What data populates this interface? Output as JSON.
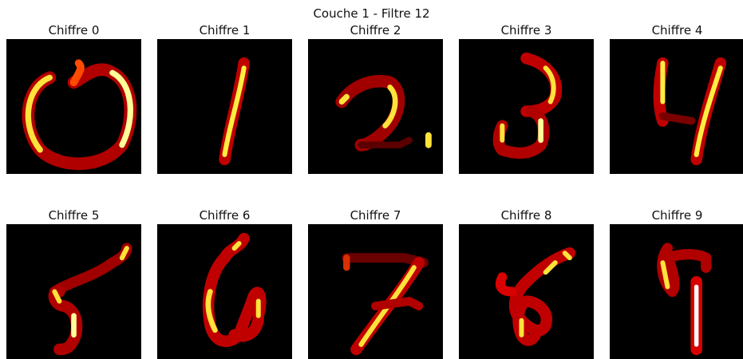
{
  "suptitle": "Couche 1 - Filtre 12",
  "colormap": "hot",
  "panels": [
    {
      "title": "Chiffre 0",
      "digit": "0"
    },
    {
      "title": "Chiffre 1",
      "digit": "1"
    },
    {
      "title": "Chiffre 2",
      "digit": "2"
    },
    {
      "title": "Chiffre 3",
      "digit": "3"
    },
    {
      "title": "Chiffre 4",
      "digit": "4"
    },
    {
      "title": "Chiffre 5",
      "digit": "5"
    },
    {
      "title": "Chiffre 6",
      "digit": "6"
    },
    {
      "title": "Chiffre 7",
      "digit": "7"
    },
    {
      "title": "Chiffre 8",
      "digit": "8"
    },
    {
      "title": "Chiffre 9",
      "digit": "9"
    }
  ]
}
